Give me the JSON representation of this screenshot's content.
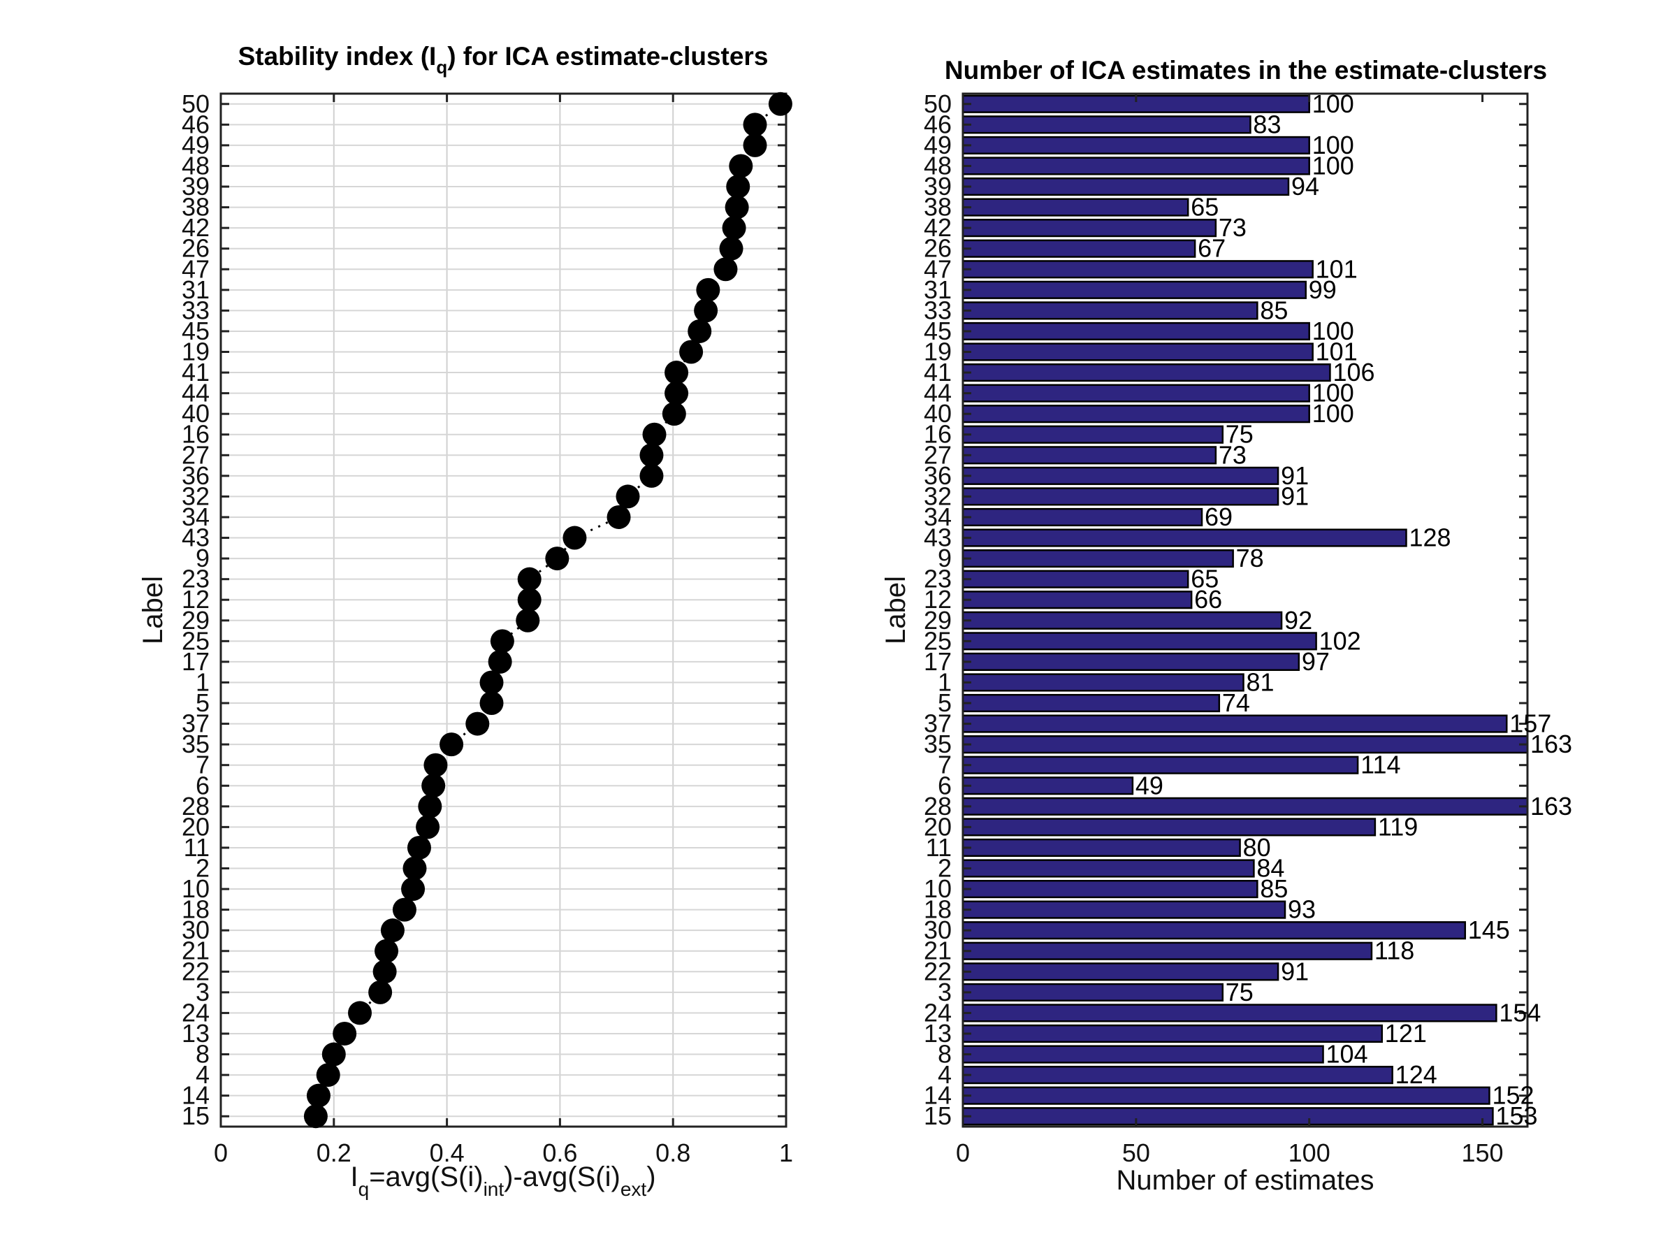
{
  "chart_data": [
    {
      "type": "scatter",
      "title_main": "Stability index (I",
      "title_sub": "q",
      "title_rest": ") for ICA estimate-clusters",
      "xlabel_parts": [
        "I",
        "q",
        "=avg(S(i)",
        "int",
        ")-avg(S(i)",
        "ext",
        ")"
      ],
      "ylabel": "Label",
      "xlim": [
        0,
        1
      ],
      "xticks": [
        "0",
        "0.2",
        "0.4",
        "0.6",
        "0.8",
        "1"
      ],
      "xtick_values": [
        0,
        0.2,
        0.4,
        0.6,
        0.8,
        1
      ],
      "grid": true,
      "marker_color": "#000000",
      "labels": [
        "50",
        "46",
        "49",
        "48",
        "39",
        "38",
        "42",
        "26",
        "47",
        "31",
        "33",
        "45",
        "19",
        "41",
        "44",
        "40",
        "16",
        "27",
        "36",
        "32",
        "34",
        "43",
        "9",
        "23",
        "12",
        "29",
        "25",
        "17",
        "1",
        "5",
        "37",
        "35",
        "7",
        "6",
        "28",
        "20",
        "11",
        "2",
        "10",
        "18",
        "30",
        "21",
        "22",
        "3",
        "24",
        "13",
        "8",
        "4",
        "14",
        "15"
      ],
      "values": [
        0.99,
        0.945,
        0.945,
        0.92,
        0.915,
        0.913,
        0.908,
        0.903,
        0.893,
        0.862,
        0.858,
        0.847,
        0.832,
        0.806,
        0.806,
        0.802,
        0.767,
        0.762,
        0.762,
        0.72,
        0.704,
        0.626,
        0.595,
        0.546,
        0.546,
        0.543,
        0.498,
        0.494,
        0.479,
        0.479,
        0.454,
        0.408,
        0.38,
        0.376,
        0.37,
        0.366,
        0.351,
        0.343,
        0.34,
        0.325,
        0.304,
        0.293,
        0.29,
        0.282,
        0.246,
        0.219,
        0.2,
        0.19,
        0.173,
        0.168
      ]
    },
    {
      "type": "bar",
      "orientation": "horizontal",
      "title": "Number of ICA estimates in the estimate-clusters",
      "xlabel": "Number of estimates",
      "ylabel": "Label",
      "xlim": [
        0,
        163
      ],
      "xticks": [
        "0",
        "50",
        "100",
        "150"
      ],
      "xtick_values": [
        0,
        50,
        100,
        150
      ],
      "bar_color": "#2e2580",
      "labels": [
        "50",
        "46",
        "49",
        "48",
        "39",
        "38",
        "42",
        "26",
        "47",
        "31",
        "33",
        "45",
        "19",
        "41",
        "44",
        "40",
        "16",
        "27",
        "36",
        "32",
        "34",
        "43",
        "9",
        "23",
        "12",
        "29",
        "25",
        "17",
        "1",
        "5",
        "37",
        "35",
        "7",
        "6",
        "28",
        "20",
        "11",
        "2",
        "10",
        "18",
        "30",
        "21",
        "22",
        "3",
        "24",
        "13",
        "8",
        "4",
        "14",
        "15"
      ],
      "values": [
        100,
        83,
        100,
        100,
        94,
        65,
        73,
        67,
        101,
        99,
        85,
        100,
        101,
        106,
        100,
        100,
        75,
        73,
        91,
        91,
        69,
        128,
        78,
        65,
        66,
        92,
        102,
        97,
        81,
        74,
        157,
        163,
        114,
        49,
        163,
        119,
        80,
        84,
        85,
        93,
        145,
        118,
        91,
        75,
        154,
        121,
        104,
        124,
        152,
        153
      ]
    }
  ]
}
